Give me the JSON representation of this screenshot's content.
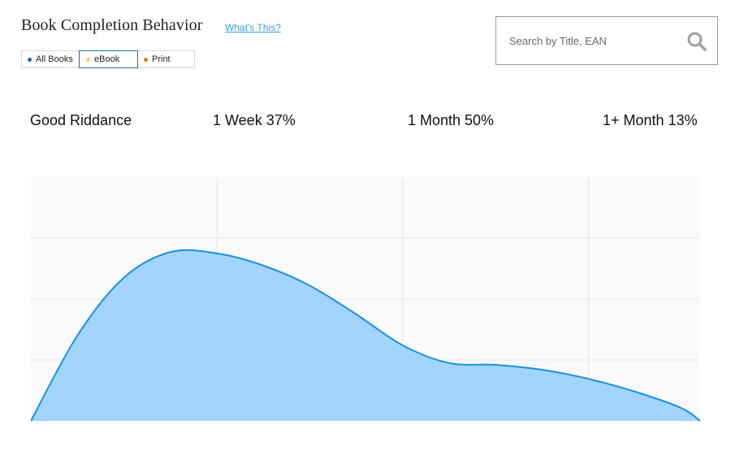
{
  "header": {
    "title": "Book Completion Behavior",
    "help_link": "What's This?"
  },
  "filters": [
    {
      "label": "All Books",
      "color": "#1a6a9a",
      "active": false
    },
    {
      "label": "eBook",
      "color": "#f5d27a",
      "active": true
    },
    {
      "label": "Print",
      "color": "#e07a1a",
      "active": false
    }
  ],
  "search": {
    "value": "",
    "placeholder": "Search by Title, EAN",
    "icon": "search-icon"
  },
  "stats": {
    "book_title": "Good Riddance",
    "week": "1 Week 37%",
    "month": "1 Month 50%",
    "month_plus": "1+ Month 13%"
  },
  "chart_data": {
    "type": "area",
    "title": "",
    "xlabel": "",
    "ylabel": "",
    "grid": true,
    "fill_color": "#a3d4fb",
    "line_color": "#1a90e0",
    "background_color": "#fafafa",
    "x_divisions": 3.6,
    "y_divisions": 4,
    "x": [
      0,
      0.25,
      0.5,
      0.75,
      1.0,
      1.25,
      1.5,
      1.75,
      2.0,
      2.25,
      2.5,
      2.75,
      3.0,
      3.25,
      3.5,
      3.6
    ],
    "y": [
      0,
      1.4,
      2.35,
      2.77,
      2.75,
      2.55,
      2.22,
      1.75,
      1.24,
      0.95,
      0.92,
      0.84,
      0.69,
      0.48,
      0.21,
      0
    ]
  }
}
